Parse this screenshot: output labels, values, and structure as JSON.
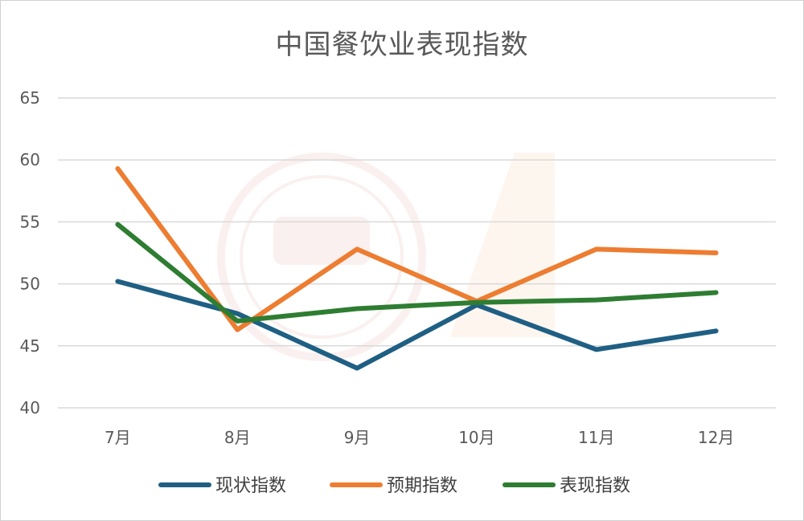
{
  "chart_data": {
    "type": "line",
    "title": "中国餐饮业表现指数",
    "categories": [
      "7月",
      "8月",
      "9月",
      "10月",
      "11月",
      "12月"
    ],
    "ylim": [
      40,
      65
    ],
    "yticks": [
      40,
      45,
      50,
      55,
      60,
      65
    ],
    "grid": true,
    "legend_position": "bottom",
    "series": [
      {
        "name": "现状指数",
        "color": "#1f5f84",
        "values": [
          50.2,
          47.6,
          43.2,
          48.3,
          44.7,
          46.2
        ]
      },
      {
        "name": "预期指数",
        "color": "#ed7d31",
        "values": [
          59.3,
          46.3,
          52.8,
          48.6,
          52.8,
          52.5
        ]
      },
      {
        "name": "表现指数",
        "color": "#2e7d32",
        "values": [
          54.8,
          47.0,
          48.0,
          48.5,
          48.7,
          49.3
        ]
      }
    ]
  }
}
